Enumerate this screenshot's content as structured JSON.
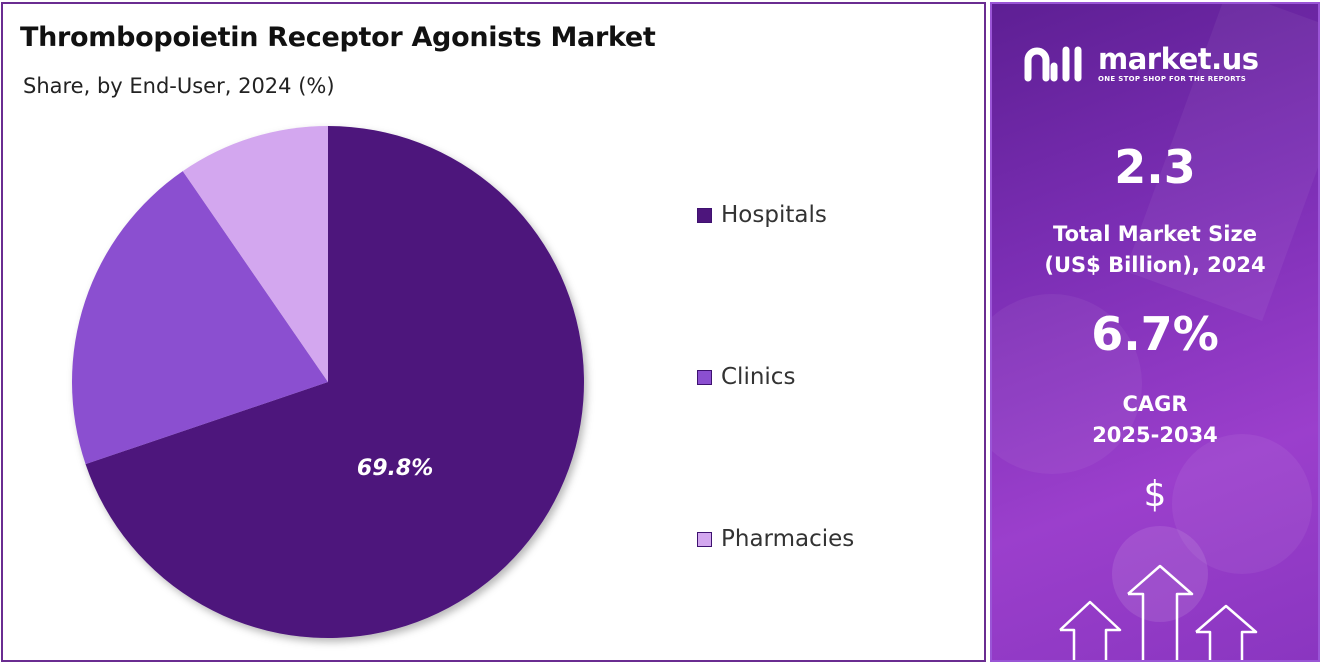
{
  "chart": {
    "title": "Thrombopoietin Receptor Agonists Market",
    "subtitle": "Share, by End-User, 2024 (%)"
  },
  "chart_data": {
    "type": "pie",
    "title": "Thrombopoietin Receptor Agonists Market",
    "subtitle": "Share, by End-User, 2024 (%)",
    "categories": [
      "Hospitals",
      "Clinics",
      "Pharmacies"
    ],
    "values": [
      69.8,
      20.6,
      9.6
    ],
    "data_labels": [
      "69.8%",
      "",
      ""
    ],
    "colors": [
      "#4d157c",
      "#8b4fd0",
      "#d3a7ef"
    ],
    "legend_position": "right"
  },
  "legend": {
    "items": [
      {
        "label": "Hospitals",
        "color": "#4d157c"
      },
      {
        "label": "Clinics",
        "color": "#8b4fd0"
      },
      {
        "label": "Pharmacies",
        "color": "#d3a7ef"
      }
    ]
  },
  "sidebar": {
    "brand_name": "market.us",
    "brand_tagline": "ONE STOP SHOP FOR THE REPORTS",
    "market_size_value": "2.3",
    "market_size_label_line1": "Total Market Size",
    "market_size_label_line2": "(US$ Billion), 2024",
    "cagr_value": "6.7%",
    "cagr_label_line1": "CAGR",
    "cagr_label_line2": "2025-2034",
    "currency_symbol": "$",
    "logo_icon": "market-us-logo-icon",
    "arrow_icon": "up-arrow-icon"
  }
}
